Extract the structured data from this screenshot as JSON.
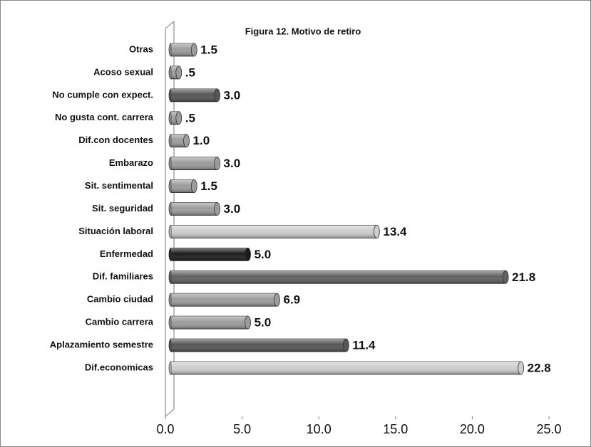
{
  "chart_data": {
    "type": "bar",
    "orientation": "horizontal",
    "title": "Figura 12. Motivo de retiro",
    "categories": [
      "Otras",
      "Acoso sexual",
      "No cumple con expect.",
      "No gusta cont. carrera",
      "Dif.con docentes",
      "Embarazo",
      "Sit. sentimental",
      "Sit. seguridad",
      "Situación laboral",
      "Enfermedad",
      "Dif. familiares",
      "Cambio ciudad",
      "Cambio carrera",
      "Aplazamiento semestre",
      "Dif.economicas"
    ],
    "values": [
      1.5,
      0.5,
      3.0,
      0.5,
      1.0,
      3.0,
      1.5,
      3.0,
      13.4,
      5.0,
      21.8,
      6.9,
      5.0,
      11.4,
      22.8
    ],
    "value_labels": [
      "1.5",
      ".5",
      "3.0",
      ".5",
      "1.0",
      "3.0",
      "1.5",
      "3.0",
      "13.4",
      "5.0",
      "21.8",
      "6.9",
      "5.0",
      "11.4",
      "22.8"
    ],
    "colors": [
      "#9c9c9c",
      "#9c9c9c",
      "#555555",
      "#9c9c9c",
      "#9c9c9c",
      "#9c9c9c",
      "#9c9c9c",
      "#9c9c9c",
      "#cdcdcd",
      "#1c1c1c",
      "#616161",
      "#9c9c9c",
      "#9c9c9c",
      "#555555",
      "#cdcdcd"
    ],
    "xlim": [
      0,
      25
    ],
    "xticks": [
      {
        "value": 0,
        "label": "0.0"
      },
      {
        "value": 5,
        "label": "5.0"
      },
      {
        "value": 10,
        "label": "10.0"
      },
      {
        "value": 15,
        "label": "15.0"
      },
      {
        "value": 20,
        "label": "20.0"
      },
      {
        "value": 25,
        "label": "25.0"
      }
    ],
    "grid": false
  }
}
